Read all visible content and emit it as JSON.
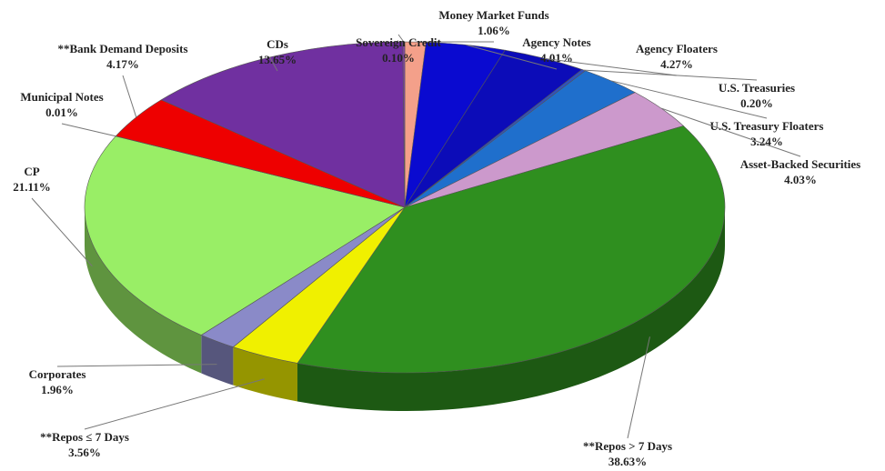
{
  "chart_data": {
    "type": "pie",
    "categories": [
      "Money Market Funds",
      "Agency Notes",
      "Agency Floaters",
      "U.S. Treasuries",
      "U.S. Treasury Floaters",
      "Asset-Backed Securities",
      "**Repos > 7 Days",
      "**Repos ≤ 7 Days",
      "Corporates",
      "CP",
      "Municipal Notes",
      "**Bank Demand Deposits",
      "CDs",
      "Sovereign Credit"
    ],
    "values": [
      1.06,
      4.01,
      4.27,
      0.2,
      3.24,
      4.03,
      38.63,
      3.56,
      1.96,
      21.11,
      0.01,
      4.17,
      13.65,
      0.1
    ],
    "value_labels": [
      "1.06%",
      "4.01%",
      "4.27%",
      "0.20%",
      "3.24%",
      "4.03%",
      "38.63%",
      "3.56%",
      "1.96%",
      "21.11%",
      "0.01%",
      "4.17%",
      "13.65%",
      "0.10%"
    ],
    "colors": [
      "#f4a08a",
      "#0a0ad0",
      "#0c0cb8",
      "#3050c0",
      "#1f6fcc",
      "#cc99cc",
      "#2f8f1f",
      "#f0f000",
      "#8a8ac8",
      "#99ee66",
      "#cc3333",
      "#ee0000",
      "#7030a0",
      "#8844aa"
    ]
  }
}
